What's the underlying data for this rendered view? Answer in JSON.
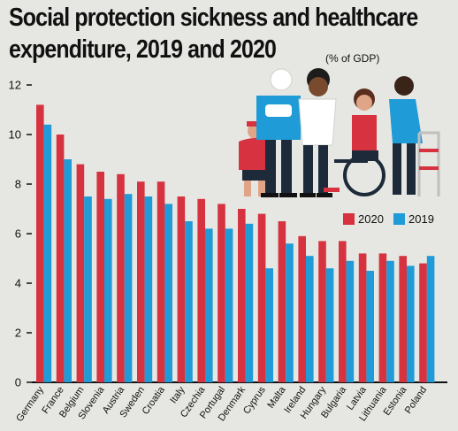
{
  "title_line_1": "Social protection sickness and healthcare",
  "title_line_2": "expenditure, 2019 and 2020",
  "unit_note": "(% of GDP)",
  "colors": {
    "y2020": "#d6323f",
    "y2019": "#1f9bd7",
    "axis": "#111111",
    "background": "#e6e7e2"
  },
  "illustration": {
    "name": "people-illustration",
    "figures": [
      "child-figure",
      "bandaged-man-figure",
      "nurse-figure",
      "wheelchair-user-figure",
      "elderly-walker-figure"
    ]
  },
  "chart_data": {
    "type": "bar",
    "categories": [
      "Germany",
      "France",
      "Belgium",
      "Slovenia",
      "Austria",
      "Sweden",
      "Croatia",
      "Italy",
      "Czechia",
      "Portugal",
      "Denmark",
      "Cyprus",
      "Malta",
      "Ireland",
      "Hungary",
      "Bulgaria",
      "Latvia",
      "Lithuania",
      "Estonia",
      "Poland"
    ],
    "series": [
      {
        "name": "2020",
        "values": [
          11.2,
          10.0,
          8.8,
          8.5,
          8.4,
          8.1,
          8.1,
          7.5,
          7.4,
          7.2,
          7.0,
          6.8,
          6.5,
          5.9,
          5.7,
          5.7,
          5.2,
          5.2,
          5.1,
          4.8
        ]
      },
      {
        "name": "2019",
        "values": [
          10.4,
          9.0,
          7.5,
          7.4,
          7.6,
          7.5,
          7.2,
          6.5,
          6.2,
          6.2,
          6.4,
          4.6,
          5.6,
          5.1,
          4.6,
          4.9,
          4.5,
          4.9,
          4.7,
          5.1
        ]
      }
    ],
    "yticks": [
      "0",
      "2",
      "4",
      "6",
      "8",
      "10",
      "12"
    ],
    "ylim": [
      0,
      12
    ],
    "legend_position": "right, below illustration",
    "grid": false
  }
}
